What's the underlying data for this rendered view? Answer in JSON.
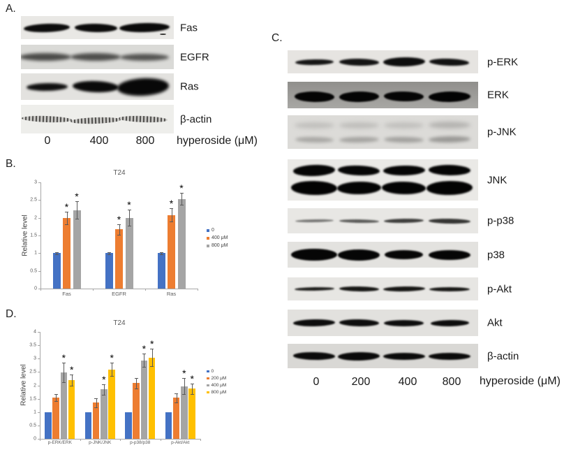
{
  "panels": {
    "a": {
      "label": "A.",
      "lane_labels": [
        "0",
        "400",
        "800"
      ],
      "axis_label": "hyperoside (μM)",
      "blots": [
        {
          "protein": "Fas"
        },
        {
          "protein": "EGFR"
        },
        {
          "protein": "Ras"
        },
        {
          "protein": "β-actin"
        }
      ]
    },
    "b": {
      "label": "B."
    },
    "c": {
      "label": "C.",
      "lane_labels": [
        "0",
        "200",
        "400",
        "800"
      ],
      "axis_label": "hyperoside (μM)",
      "blots": [
        {
          "protein": "p-ERK"
        },
        {
          "protein": "ERK"
        },
        {
          "protein": "p-JNK"
        },
        {
          "protein": "JNK"
        },
        {
          "protein": "p-p38"
        },
        {
          "protein": "p38"
        },
        {
          "protein": "p-Akt"
        },
        {
          "protein": "Akt"
        },
        {
          "protein": "β-actin"
        }
      ]
    },
    "d": {
      "label": "D."
    }
  },
  "colors": {
    "series_blue": "#4472c4",
    "series_orange": "#ed7d31",
    "series_gray": "#a5a5a5",
    "series_yellow": "#ffc000",
    "axis": "#a6a6a6",
    "tick_text": "#595959",
    "error_bar": "#595959"
  },
  "chart_data": [
    {
      "panel": "B",
      "type": "bar",
      "title": "T24",
      "ylabel": "Relative level",
      "ylim": [
        0,
        3
      ],
      "ytick_step": 0.5,
      "grid": false,
      "legend_position": "right",
      "sig_marker": "*",
      "categories": [
        "Fas",
        "EGFR",
        "Ras"
      ],
      "series": [
        {
          "name": "0",
          "color_key": "series_blue",
          "values": [
            1.0,
            1.0,
            1.0
          ],
          "errors": [
            0.03,
            0.03,
            0.03
          ],
          "significant": [
            false,
            false,
            false
          ]
        },
        {
          "name": "400 μM",
          "color_key": "series_orange",
          "values": [
            2.0,
            1.67,
            2.08
          ],
          "errors": [
            0.18,
            0.15,
            0.18
          ],
          "significant": [
            true,
            true,
            true
          ]
        },
        {
          "name": "800 μM",
          "color_key": "series_gray",
          "values": [
            2.22,
            2.0,
            2.53
          ],
          "errors": [
            0.25,
            0.23,
            0.17
          ],
          "significant": [
            true,
            true,
            true
          ]
        }
      ]
    },
    {
      "panel": "D",
      "type": "bar",
      "title": "T24",
      "ylabel": "Relative level",
      "ylim": [
        0,
        4
      ],
      "ytick_step": 0.5,
      "grid": false,
      "legend_position": "right",
      "sig_marker": "*",
      "categories": [
        "p-ERK/ERK",
        "p-JNK/JNK",
        "p-p38/p38",
        "p-Akt/Akt"
      ],
      "series": [
        {
          "name": "0",
          "color_key": "series_blue",
          "values": [
            1.0,
            1.0,
            1.0,
            1.0
          ],
          "errors": [
            0,
            0,
            0,
            0
          ],
          "significant": [
            false,
            false,
            false,
            false
          ]
        },
        {
          "name": "200 μM",
          "color_key": "series_orange",
          "values": [
            1.55,
            1.35,
            2.08,
            1.53
          ],
          "errors": [
            0.13,
            0.17,
            0.2,
            0.17
          ],
          "significant": [
            false,
            false,
            false,
            false
          ]
        },
        {
          "name": "400 μM",
          "color_key": "series_gray",
          "values": [
            2.48,
            1.85,
            2.93,
            1.97
          ],
          "errors": [
            0.36,
            0.2,
            0.25,
            0.3
          ],
          "significant": [
            true,
            true,
            true,
            true
          ]
        },
        {
          "name": "800 μM",
          "color_key": "series_yellow",
          "values": [
            2.2,
            2.6,
            3.04,
            1.87
          ],
          "errors": [
            0.21,
            0.25,
            0.33,
            0.19
          ],
          "significant": [
            true,
            true,
            true,
            true
          ]
        }
      ]
    }
  ]
}
